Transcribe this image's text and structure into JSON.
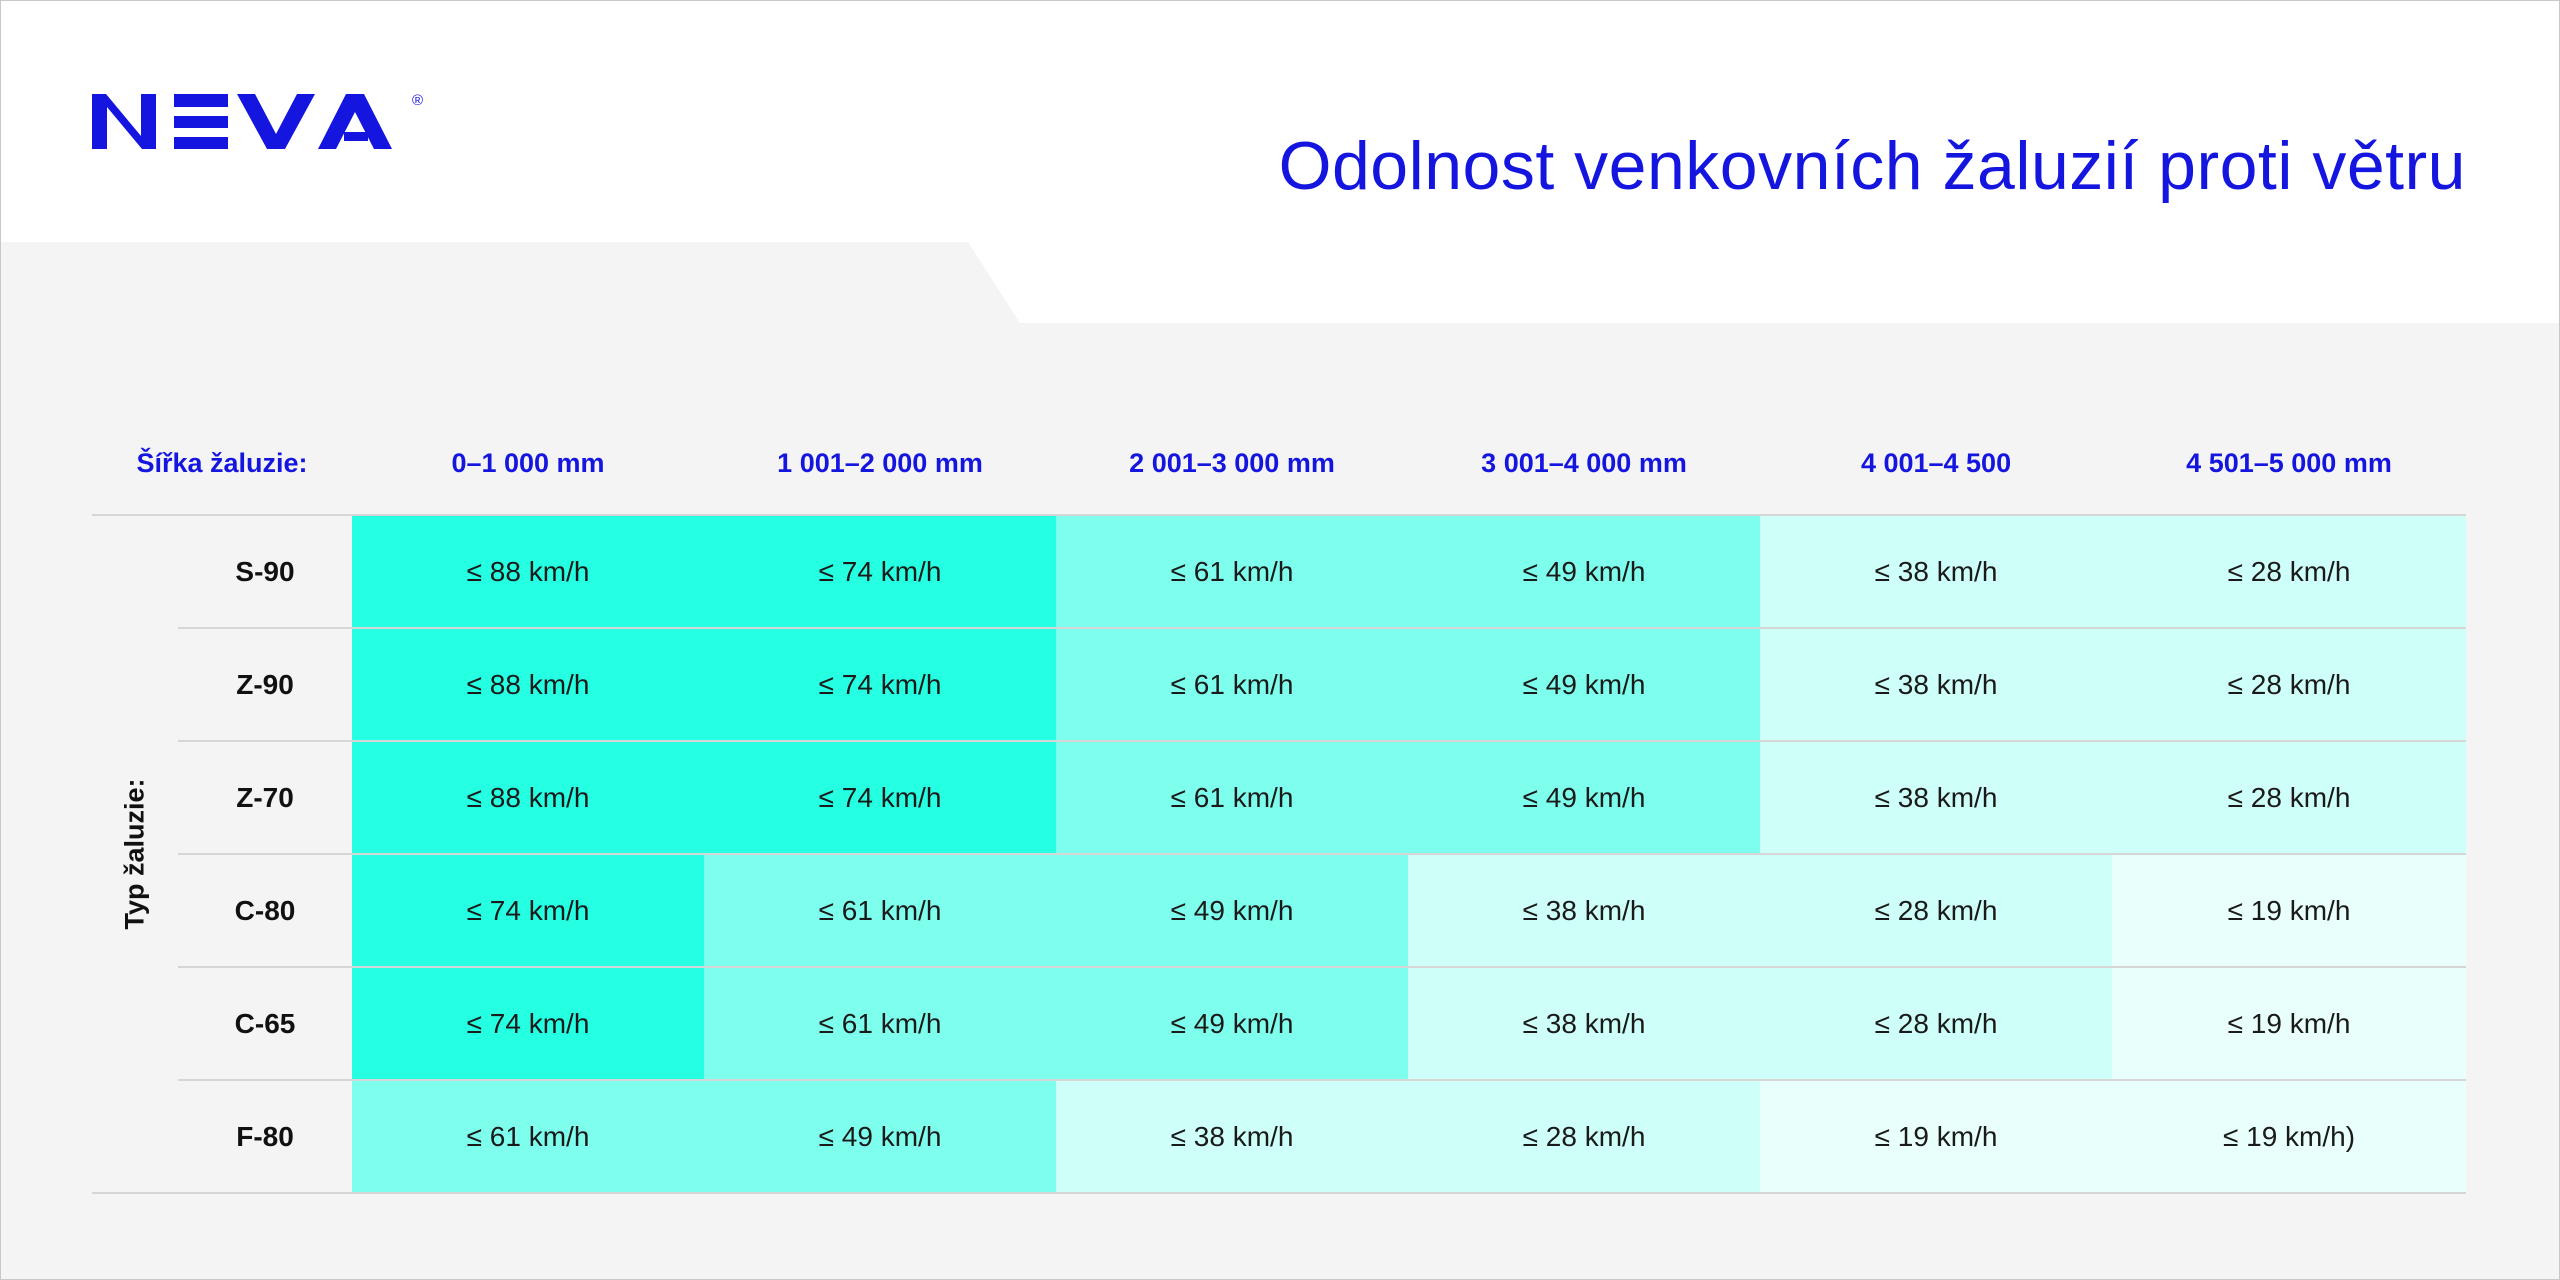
{
  "brand": {
    "logo_text": "NEVA",
    "registered_mark": "®",
    "color": "#1515e0"
  },
  "title": "Odolnost venkovních žaluzií proti větru",
  "table": {
    "width_label": "Šířka žaluzie:",
    "type_label": "Typ žaluzie:",
    "columns": [
      "0–1 000 mm",
      "1 001–2 000 mm",
      "2 001–3 000 mm",
      "3 001–4 000 mm",
      "4 001–4 500",
      "4 501–5 000 mm"
    ],
    "rows": [
      {
        "type": "S-90",
        "values": [
          "≤ 88 km/h",
          "≤ 74 km/h",
          "≤ 61 km/h",
          "≤ 49 km/h",
          "≤ 38 km/h",
          "≤ 28 km/h"
        ],
        "levels": [
          1,
          1,
          2,
          2,
          3,
          3
        ]
      },
      {
        "type": "Z-90",
        "values": [
          "≤ 88 km/h",
          "≤ 74 km/h",
          "≤ 61 km/h",
          "≤ 49 km/h",
          "≤ 38 km/h",
          "≤ 28 km/h"
        ],
        "levels": [
          1,
          1,
          2,
          2,
          3,
          3
        ]
      },
      {
        "type": "Z-70",
        "values": [
          "≤ 88 km/h",
          "≤ 74 km/h",
          "≤ 61 km/h",
          "≤ 49 km/h",
          "≤ 38 km/h",
          "≤ 28 km/h"
        ],
        "levels": [
          1,
          1,
          2,
          2,
          3,
          3
        ]
      },
      {
        "type": "C-80",
        "values": [
          "≤ 74 km/h",
          "≤ 61 km/h",
          "≤ 49 km/h",
          "≤ 38 km/h",
          "≤ 28 km/h",
          "≤ 19 km/h"
        ],
        "levels": [
          1,
          2,
          2,
          3,
          3,
          4
        ]
      },
      {
        "type": "C-65",
        "values": [
          "≤ 74 km/h",
          "≤ 61 km/h",
          "≤ 49 km/h",
          "≤ 38 km/h",
          "≤ 28 km/h",
          "≤ 19 km/h"
        ],
        "levels": [
          1,
          2,
          2,
          3,
          3,
          4
        ]
      },
      {
        "type": "F-80",
        "values": [
          "≤ 61 km/h",
          "≤ 49 km/h",
          "≤ 38 km/h",
          "≤ 28 km/h",
          "≤ 19 km/h",
          "≤ 19 km/h)"
        ],
        "levels": [
          2,
          2,
          3,
          3,
          4,
          4
        ]
      }
    ],
    "level_colors": {
      "1": "#25ffe2",
      "2": "#7effee",
      "3": "#cffff9",
      "4": "#e8fffc"
    }
  },
  "colors": {
    "accent": "#1515e0",
    "background": "#f4f4f4",
    "panel": "#ffffff"
  }
}
